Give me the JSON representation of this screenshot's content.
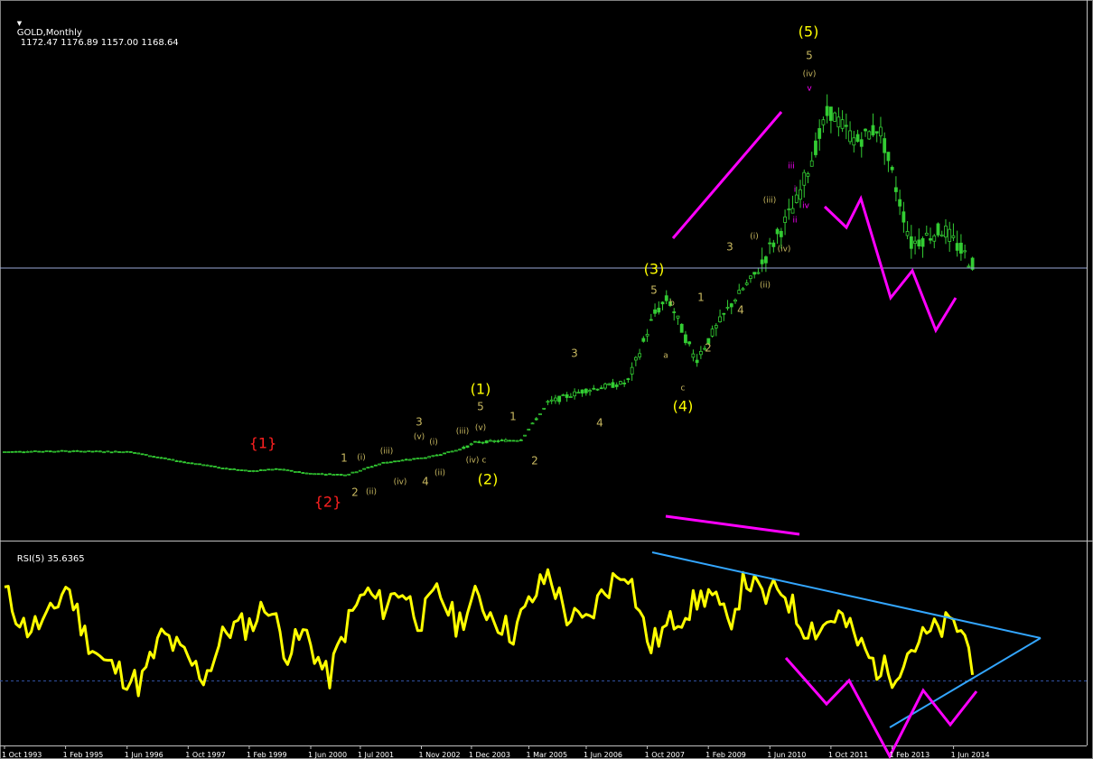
{
  "header": {
    "symbol_timeframe": "GOLD,Monthly",
    "ohlc": "1172.47 1176.89 1157.00 1168.64"
  },
  "rsi_header": "RSI(5) 35.6365",
  "colors": {
    "background": "#000000",
    "candles": "#33cc33",
    "rsi_line": "#ffff00",
    "trend_lines": "#33a6ff",
    "pattern_lines": "#ff00ff",
    "wave_major": "#ffff00",
    "wave_minor": "#c8b860",
    "wave_red": "#ff2020",
    "wave_magenta": "#ff00ff",
    "price_level": "#9aa8d8"
  },
  "x_axis_labels": [
    "1 Oct 1993",
    "1 Feb 1995",
    "1 Jun 1996",
    "1 Oct 1997",
    "1 Feb 1999",
    "1 Jun 2000",
    "1 Jul 2001",
    "1 Nov 2002",
    "1 Dec 2003",
    "1 Mar 2005",
    "1 Jun 2006",
    "1 Oct 2007",
    "1 Feb 2009",
    "1 Jun 2010",
    "1 Oct 2011",
    "1 Feb 2013",
    "1 Jun 2014"
  ],
  "wave_labels": [
    {
      "text": "(5)",
      "style": "major"
    },
    {
      "text": "5",
      "style": "minor"
    },
    {
      "text": "(iv)",
      "style": "minor"
    },
    {
      "text": "v",
      "style": "magenta"
    },
    {
      "text": "iii",
      "style": "magenta"
    },
    {
      "text": "iv",
      "style": "magenta"
    },
    {
      "text": "i",
      "style": "magenta"
    },
    {
      "text": "ii",
      "style": "magenta"
    },
    {
      "text": "(iii)",
      "style": "minor"
    },
    {
      "text": "(i)",
      "style": "minor"
    },
    {
      "text": "(iv)",
      "style": "minor"
    },
    {
      "text": "(ii)",
      "style": "minor"
    },
    {
      "text": "3",
      "style": "minor"
    },
    {
      "text": "4",
      "style": "minor"
    },
    {
      "text": "1",
      "style": "minor"
    },
    {
      "text": "2",
      "style": "minor"
    },
    {
      "text": "(3)",
      "style": "major"
    },
    {
      "text": "5",
      "style": "minor"
    },
    {
      "text": "b",
      "style": "minor"
    },
    {
      "text": "a",
      "style": "minor"
    },
    {
      "text": "c",
      "style": "minor"
    },
    {
      "text": "(4)",
      "style": "major"
    },
    {
      "text": "3",
      "style": "minor"
    },
    {
      "text": "4",
      "style": "minor"
    },
    {
      "text": "(1)",
      "style": "major"
    },
    {
      "text": "5",
      "style": "minor"
    },
    {
      "text": "1",
      "style": "minor"
    },
    {
      "text": "2",
      "style": "minor"
    },
    {
      "text": "(2)",
      "style": "major"
    },
    {
      "text": "(iv)",
      "style": "minor"
    },
    {
      "text": "c",
      "style": "minor"
    },
    {
      "text": "(v)",
      "style": "minor"
    },
    {
      "text": "(iii)",
      "style": "minor"
    },
    {
      "text": "3",
      "style": "minor"
    },
    {
      "text": "(v)",
      "style": "minor"
    },
    {
      "text": "(i)",
      "style": "minor"
    },
    {
      "text": "(ii)",
      "style": "minor"
    },
    {
      "text": "4",
      "style": "minor"
    },
    {
      "text": "(iv)",
      "style": "minor"
    },
    {
      "text": "1",
      "style": "minor"
    },
    {
      "text": "(i)",
      "style": "minor"
    },
    {
      "text": "(iii)",
      "style": "minor"
    },
    {
      "text": "2",
      "style": "minor"
    },
    {
      "text": "(ii)",
      "style": "minor"
    },
    {
      "text": "{1}",
      "style": "red"
    },
    {
      "text": "{2}",
      "style": "red"
    }
  ],
  "chart_data": [
    {
      "type": "candlestick",
      "title": "GOLD,Monthly",
      "x_start": "1 Oct 1993",
      "x_end": "Nov 2014",
      "series": [
        {
          "name": "GOLD",
          "x": [
            1993.75,
            1995.0,
            1996.5,
            1997.5,
            1998.5,
            1999.1,
            1999.7,
            2000.4,
            2001.2,
            2002.0,
            2003.0,
            2004.0,
            2005.0,
            2005.6,
            2006.4,
            2007.3,
            2007.9,
            2008.2,
            2008.8,
            2009.5,
            2010.3,
            2011.0,
            2011.7,
            2012.3,
            2012.8,
            2013.5,
            2014.2,
            2014.9
          ],
          "values": [
            380,
            385,
            380,
            330,
            295,
            280,
            290,
            270,
            265,
            320,
            350,
            420,
            430,
            580,
            640,
            680,
            930,
            1000,
            760,
            950,
            1200,
            1400,
            1800,
            1650,
            1720,
            1250,
            1300,
            1168.64
          ]
        }
      ]
    },
    {
      "type": "line",
      "title": "RSI(5) 35.6365",
      "series": [
        {
          "name": "RSI(5)",
          "x": [
            1993.75,
            1994.2,
            1994.7,
            1995.1,
            1995.5,
            1995.9,
            1996.3,
            1996.7,
            1997.2,
            1997.7,
            1998.1,
            1998.6,
            1999.1,
            1999.5,
            1999.9,
            2000.3,
            2000.8,
            2001.2,
            2001.6,
            2002.0,
            2002.4,
            2002.8,
            2003.2,
            2003.6,
            2004.0,
            2004.4,
            2004.8,
            2005.2,
            2005.6,
            2006.0,
            2006.4,
            2006.8,
            2007.3,
            2007.8,
            2008.3,
            2008.7,
            2009.1,
            2009.5,
            2009.9,
            2010.3,
            2010.7,
            2011.1,
            2011.5,
            2011.9,
            2012.3,
            2012.7,
            2013.1,
            2013.5,
            2013.9,
            2014.3,
            2014.6,
            2014.9
          ],
          "values": [
            78,
            58,
            62,
            82,
            55,
            40,
            34,
            28,
            55,
            42,
            32,
            58,
            60,
            72,
            45,
            56,
            30,
            60,
            78,
            70,
            80,
            62,
            78,
            60,
            74,
            65,
            55,
            72,
            88,
            65,
            60,
            78,
            92,
            48,
            62,
            70,
            78,
            60,
            85,
            74,
            80,
            60,
            58,
            66,
            52,
            38,
            34,
            48,
            55,
            60,
            58,
            35.6
          ]
        }
      ],
      "ylim": [
        0,
        100
      ]
    }
  ]
}
